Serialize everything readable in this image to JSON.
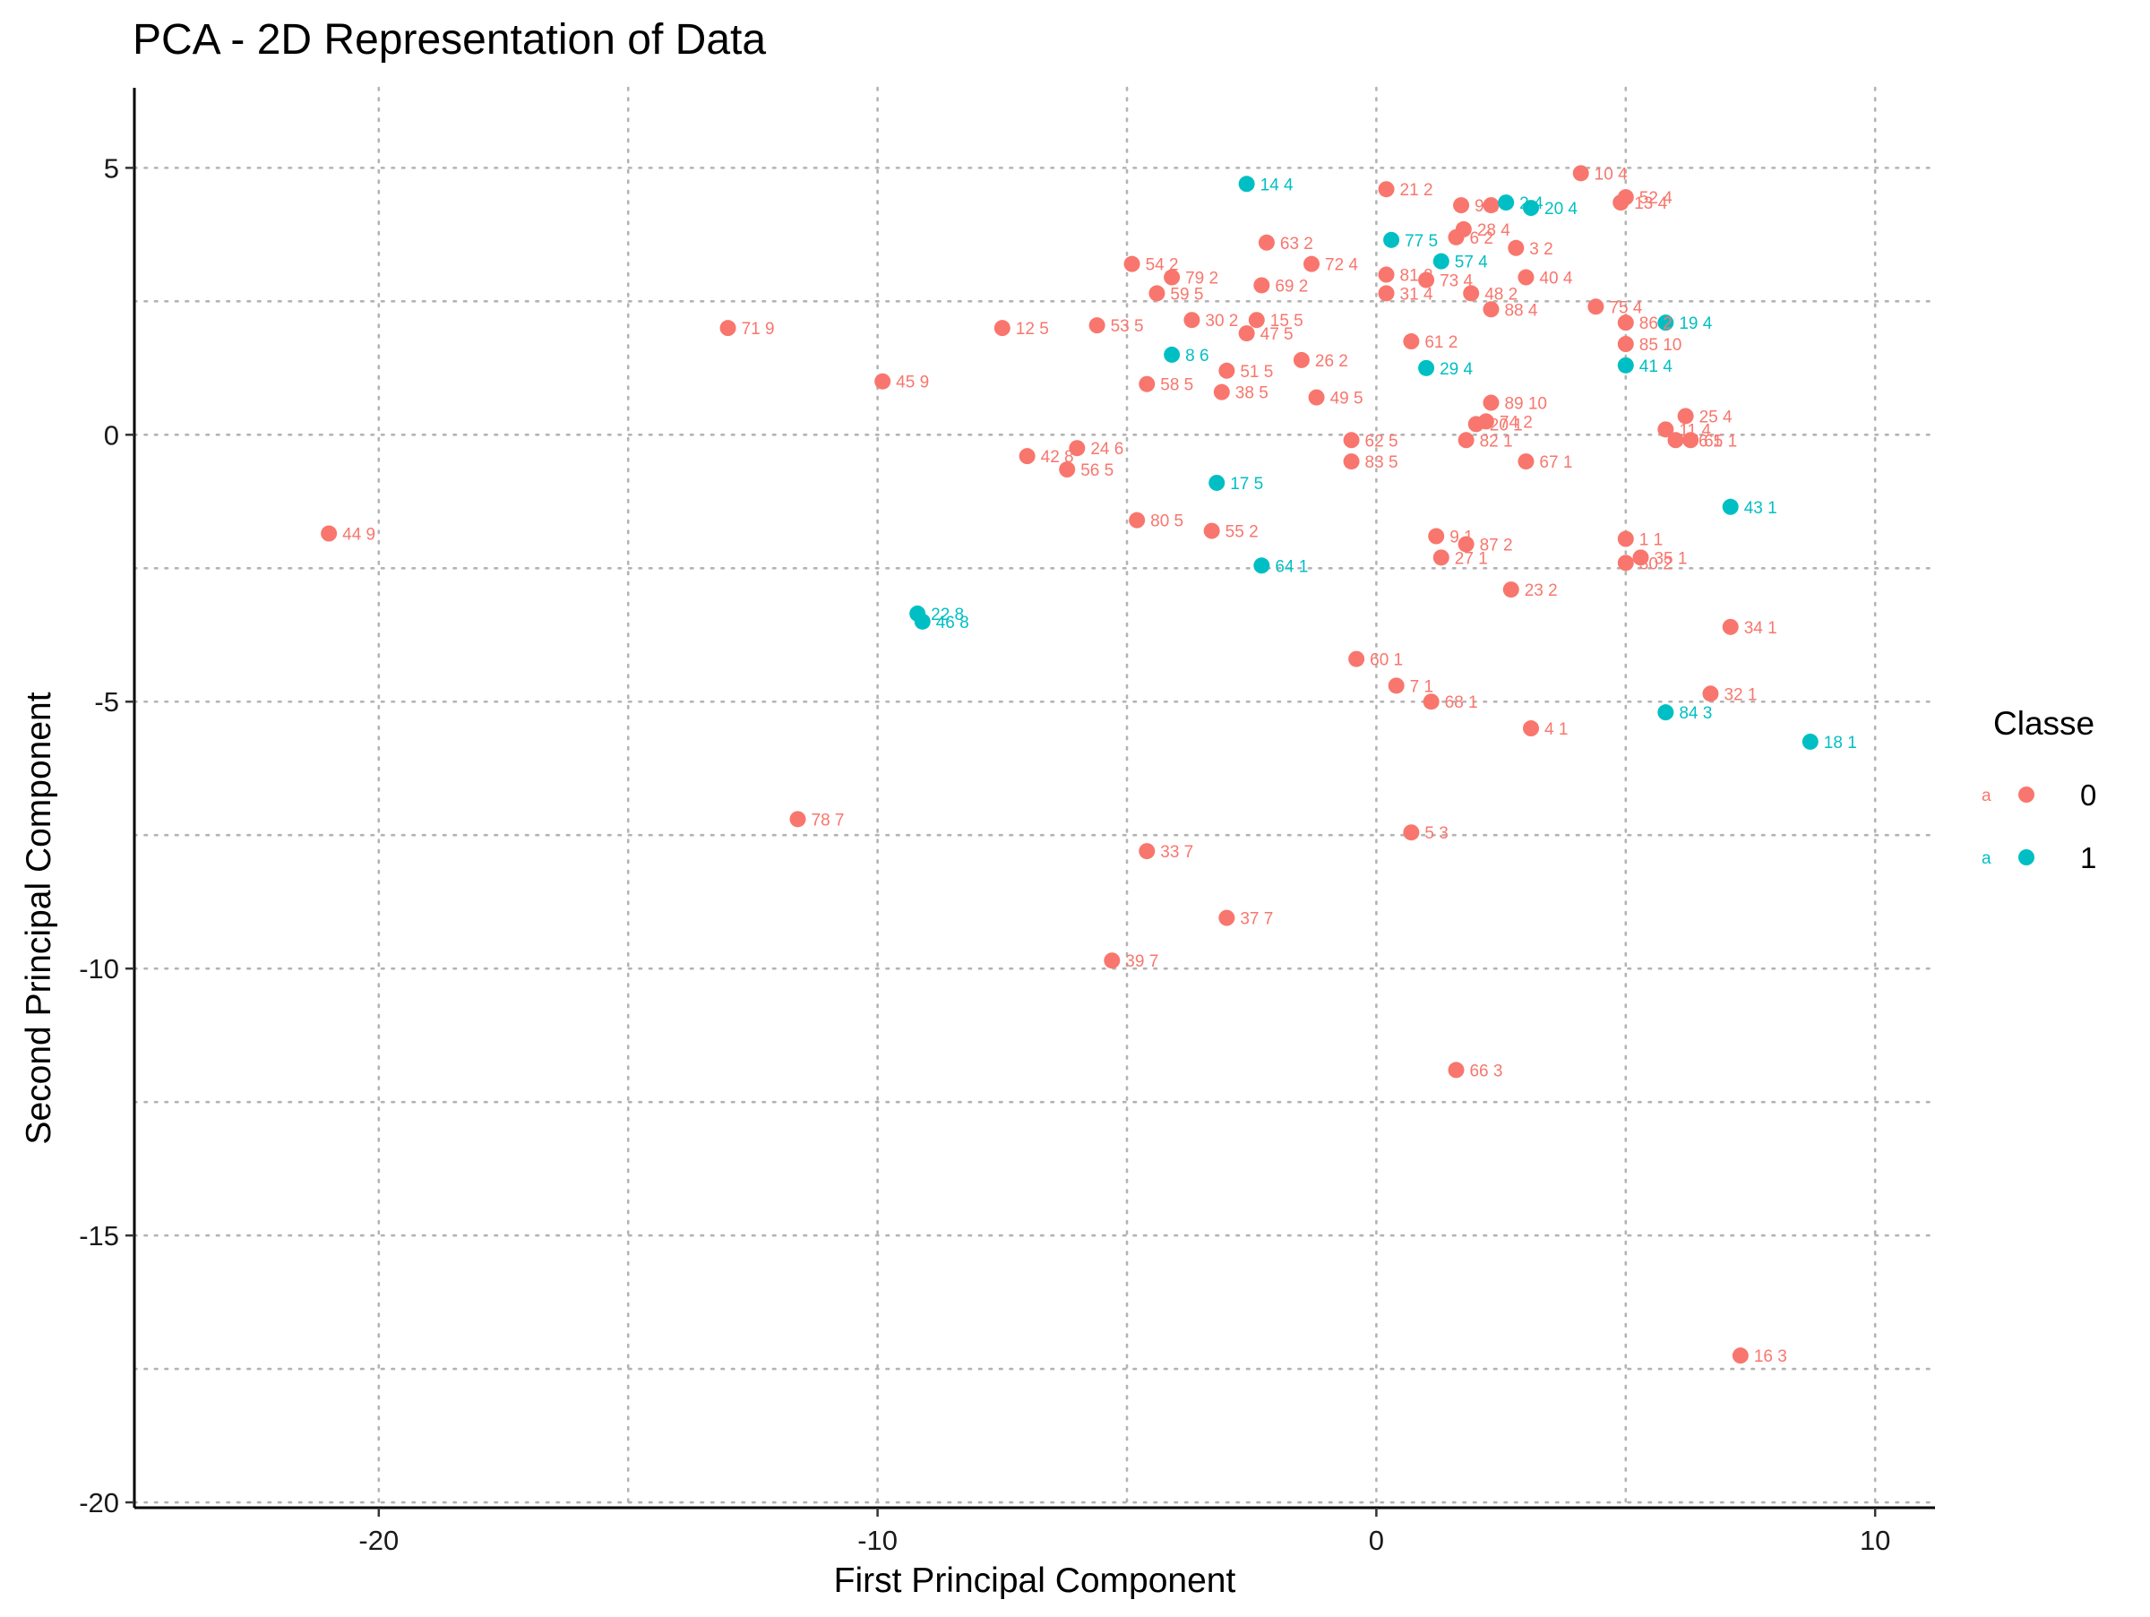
{
  "chart_data": {
    "type": "scatter",
    "title": "PCA - 2D Representation of Data",
    "xlabel": "First Principal Component",
    "ylabel": "Second Principal Component",
    "xlim": [
      -24.9,
      11.2
    ],
    "ylim": [
      -20.1,
      6.5
    ],
    "x_ticks": [
      -20,
      -10,
      0,
      10
    ],
    "x_tick_labels": [
      "-20",
      "-10",
      "0",
      "10"
    ],
    "y_ticks": [
      5,
      0,
      -5,
      -10,
      -15,
      -20
    ],
    "y_tick_labels": [
      "5",
      "0",
      "-5",
      "-10",
      "-15",
      "-20"
    ],
    "x_grid": [
      -20,
      -15,
      -10,
      -5,
      0,
      5,
      10
    ],
    "y_grid": [
      5,
      2.5,
      0,
      -2.5,
      -5,
      -7.5,
      -10,
      -12.5,
      -15,
      -17.5,
      -20
    ],
    "grid": true,
    "legend": {
      "title": "Classe",
      "position": "right",
      "key_letter": "a",
      "entries": [
        {
          "label": "0",
          "color": "#F8766D"
        },
        {
          "label": "1",
          "color": "#00BFC4"
        }
      ]
    },
    "series": [
      {
        "name": "0",
        "color": "#F8766D",
        "points": [
          {
            "x": 4.1,
            "y": 4.9,
            "label": "10 4"
          },
          {
            "x": 0.2,
            "y": 4.6,
            "label": "21 2"
          },
          {
            "x": 5.0,
            "y": 4.45,
            "label": "52 4"
          },
          {
            "x": 4.9,
            "y": 4.35,
            "label": "13 4"
          },
          {
            "x": 1.7,
            "y": 4.3,
            "label": "9 2"
          },
          {
            "x": 2.3,
            "y": 4.3,
            "label": ""
          },
          {
            "x": 1.75,
            "y": 3.85,
            "label": "28 4"
          },
          {
            "x": 1.6,
            "y": 3.7,
            "label": "6 2"
          },
          {
            "x": 2.8,
            "y": 3.5,
            "label": "3 2"
          },
          {
            "x": -2.2,
            "y": 3.6,
            "label": "63 2"
          },
          {
            "x": -1.3,
            "y": 3.2,
            "label": "72 4"
          },
          {
            "x": -4.9,
            "y": 3.2,
            "label": "54 2"
          },
          {
            "x": -4.1,
            "y": 2.95,
            "label": "79 2"
          },
          {
            "x": 0.2,
            "y": 3.0,
            "label": "81 2"
          },
          {
            "x": 1.0,
            "y": 2.9,
            "label": "73 4"
          },
          {
            "x": 3.0,
            "y": 2.95,
            "label": "40 4"
          },
          {
            "x": -2.3,
            "y": 2.8,
            "label": "69 2"
          },
          {
            "x": -4.4,
            "y": 2.65,
            "label": "59 5"
          },
          {
            "x": 0.2,
            "y": 2.65,
            "label": "31 4"
          },
          {
            "x": 1.9,
            "y": 2.65,
            "label": "48 2"
          },
          {
            "x": 2.3,
            "y": 2.35,
            "label": "88 4"
          },
          {
            "x": 4.4,
            "y": 2.4,
            "label": "75 4"
          },
          {
            "x": -13.0,
            "y": 2.0,
            "label": "71 9"
          },
          {
            "x": -7.5,
            "y": 2.0,
            "label": "12 5"
          },
          {
            "x": -5.6,
            "y": 2.05,
            "label": "53 5"
          },
          {
            "x": -3.7,
            "y": 2.15,
            "label": "30 2"
          },
          {
            "x": -2.4,
            "y": 2.15,
            "label": "15 5"
          },
          {
            "x": -2.6,
            "y": 1.9,
            "label": "47 5"
          },
          {
            "x": 5.0,
            "y": 2.1,
            "label": "86 2"
          },
          {
            "x": 0.7,
            "y": 1.75,
            "label": "61 2"
          },
          {
            "x": 5.0,
            "y": 1.7,
            "label": "85 10"
          },
          {
            "x": -1.5,
            "y": 1.4,
            "label": "26 2"
          },
          {
            "x": -3.0,
            "y": 1.2,
            "label": "51 5"
          },
          {
            "x": -9.9,
            "y": 1.0,
            "label": "45 9"
          },
          {
            "x": -4.6,
            "y": 0.95,
            "label": "58 5"
          },
          {
            "x": -3.1,
            "y": 0.8,
            "label": "38 5"
          },
          {
            "x": -1.2,
            "y": 0.7,
            "label": "49 5"
          },
          {
            "x": 2.3,
            "y": 0.6,
            "label": "89 10"
          },
          {
            "x": 6.2,
            "y": 0.35,
            "label": "25 4"
          },
          {
            "x": 2.2,
            "y": 0.25,
            "label": "74 2"
          },
          {
            "x": 2.0,
            "y": 0.2,
            "label": "20 1"
          },
          {
            "x": 5.8,
            "y": 0.1,
            "label": "11 4"
          },
          {
            "x": 6.0,
            "y": -0.1,
            "label": "76 1"
          },
          {
            "x": 6.3,
            "y": -0.1,
            "label": "65 1"
          },
          {
            "x": -0.5,
            "y": -0.1,
            "label": "62 5"
          },
          {
            "x": 1.8,
            "y": -0.1,
            "label": "82 1"
          },
          {
            "x": -6.0,
            "y": -0.25,
            "label": "24 6"
          },
          {
            "x": -7.0,
            "y": -0.4,
            "label": "42 8"
          },
          {
            "x": -0.5,
            "y": -0.5,
            "label": "83 5"
          },
          {
            "x": 3.0,
            "y": -0.5,
            "label": "67 1"
          },
          {
            "x": -6.2,
            "y": -0.65,
            "label": "56 5"
          },
          {
            "x": -4.8,
            "y": -1.6,
            "label": "80 5"
          },
          {
            "x": -3.3,
            "y": -1.8,
            "label": "55 2"
          },
          {
            "x": -21.0,
            "y": -1.85,
            "label": "44 9"
          },
          {
            "x": 1.2,
            "y": -1.9,
            "label": "9 1"
          },
          {
            "x": 1.8,
            "y": -2.05,
            "label": "87 2"
          },
          {
            "x": 5.0,
            "y": -1.95,
            "label": "1 1"
          },
          {
            "x": 1.3,
            "y": -2.3,
            "label": "27 1"
          },
          {
            "x": 5.3,
            "y": -2.3,
            "label": "35 1"
          },
          {
            "x": 5.0,
            "y": -2.4,
            "label": "30 2"
          },
          {
            "x": 2.7,
            "y": -2.9,
            "label": "23 2"
          },
          {
            "x": 7.1,
            "y": -3.6,
            "label": "34 1"
          },
          {
            "x": -0.4,
            "y": -4.2,
            "label": "60 1"
          },
          {
            "x": 0.4,
            "y": -4.7,
            "label": "7 1"
          },
          {
            "x": 6.7,
            "y": -4.85,
            "label": "32 1"
          },
          {
            "x": 1.1,
            "y": -5.0,
            "label": "68 1"
          },
          {
            "x": 3.1,
            "y": -5.5,
            "label": "4 1"
          },
          {
            "x": -11.6,
            "y": -7.2,
            "label": "78 7"
          },
          {
            "x": 0.7,
            "y": -7.45,
            "label": "5 3"
          },
          {
            "x": -4.6,
            "y": -7.8,
            "label": "33 7"
          },
          {
            "x": -3.0,
            "y": -9.05,
            "label": "37 7"
          },
          {
            "x": -5.3,
            "y": -9.85,
            "label": "39 7"
          },
          {
            "x": 1.6,
            "y": -11.9,
            "label": "66 3"
          },
          {
            "x": 7.3,
            "y": -17.25,
            "label": "16 3"
          }
        ]
      },
      {
        "name": "1",
        "color": "#00BFC4",
        "points": [
          {
            "x": -2.6,
            "y": 4.7,
            "label": "14 4"
          },
          {
            "x": 2.6,
            "y": 4.35,
            "label": "2 4"
          },
          {
            "x": 3.1,
            "y": 4.25,
            "label": "20 4"
          },
          {
            "x": 0.3,
            "y": 3.65,
            "label": "77 5"
          },
          {
            "x": 1.3,
            "y": 3.25,
            "label": "57 4"
          },
          {
            "x": 5.8,
            "y": 2.1,
            "label": "19 4"
          },
          {
            "x": -4.1,
            "y": 1.5,
            "label": "8 6"
          },
          {
            "x": 1.0,
            "y": 1.25,
            "label": "29 4"
          },
          {
            "x": 5.0,
            "y": 1.3,
            "label": "41 4"
          },
          {
            "x": -3.2,
            "y": -0.9,
            "label": "17 5"
          },
          {
            "x": 7.1,
            "y": -1.35,
            "label": "43 1"
          },
          {
            "x": -2.3,
            "y": -2.45,
            "label": "64 1"
          },
          {
            "x": -9.2,
            "y": -3.35,
            "label": "22 8"
          },
          {
            "x": -9.1,
            "y": -3.5,
            "label": "46 8"
          },
          {
            "x": 5.8,
            "y": -5.2,
            "label": "84 3"
          },
          {
            "x": 8.7,
            "y": -5.75,
            "label": "18 1"
          }
        ]
      }
    ]
  }
}
